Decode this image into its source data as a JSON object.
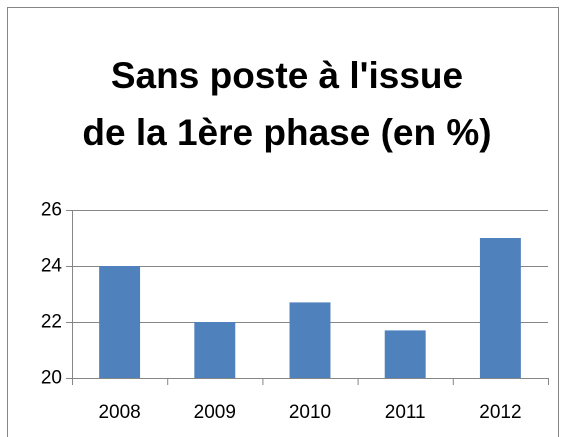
{
  "chart_data": {
    "type": "bar",
    "title": [
      "Sans poste à l'issue",
      "de la 1ère phase (en %)"
    ],
    "categories": [
      "2008",
      "2009",
      "2010",
      "2011",
      "2012"
    ],
    "values": [
      24,
      22,
      22.7,
      21.7,
      25
    ],
    "color": "#4f81bd",
    "ylim": [
      20,
      26
    ],
    "yticks": [
      20,
      22,
      24,
      26
    ],
    "grid": true
  }
}
